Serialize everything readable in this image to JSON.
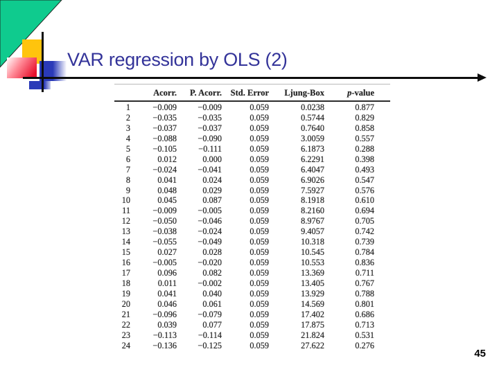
{
  "slide": {
    "title": "VAR regression by OLS (2)",
    "page_number": "45"
  },
  "colors": {
    "title_text": "#333399",
    "triangle_green": "#0fcb8e",
    "square_yellow": "#ffc40d",
    "square_red": "#e8112d",
    "square_blue": "#2a3ab8",
    "arrow_line": "#0d0d0d"
  },
  "chart_data": {
    "type": "table",
    "columns": [
      "",
      "Acorr.",
      "P. Acorr.",
      "Std. Error",
      "Ljung-Box",
      "p-value"
    ],
    "rows": [
      [
        "1",
        "−0.009",
        "−0.009",
        "0.059",
        "0.0238",
        "0.877"
      ],
      [
        "2",
        "−0.035",
        "−0.035",
        "0.059",
        "0.5744",
        "0.829"
      ],
      [
        "3",
        "−0.037",
        "−0.037",
        "0.059",
        "0.7640",
        "0.858"
      ],
      [
        "4",
        "−0.088",
        "−0.090",
        "0.059",
        "3.0059",
        "0.557"
      ],
      [
        "5",
        "−0.105",
        "−0.111",
        "0.059",
        "6.1873",
        "0.288"
      ],
      [
        "6",
        "0.012",
        "0.000",
        "0.059",
        "6.2291",
        "0.398"
      ],
      [
        "7",
        "−0.024",
        "−0.041",
        "0.059",
        "6.4047",
        "0.493"
      ],
      [
        "8",
        "0.041",
        "0.024",
        "0.059",
        "6.9026",
        "0.547"
      ],
      [
        "9",
        "0.048",
        "0.029",
        "0.059",
        "7.5927",
        "0.576"
      ],
      [
        "10",
        "0.045",
        "0.087",
        "0.059",
        "8.1918",
        "0.610"
      ],
      [
        "11",
        "−0.009",
        "−0.005",
        "0.059",
        "8.2160",
        "0.694"
      ],
      [
        "12",
        "−0.050",
        "−0.046",
        "0.059",
        "8.9767",
        "0.705"
      ],
      [
        "13",
        "−0.038",
        "−0.024",
        "0.059",
        "9.4057",
        "0.742"
      ],
      [
        "14",
        "−0.055",
        "−0.049",
        "0.059",
        "10.318",
        "0.739"
      ],
      [
        "15",
        "0.027",
        "0.028",
        "0.059",
        "10.545",
        "0.784"
      ],
      [
        "16",
        "−0.005",
        "−0.020",
        "0.059",
        "10.553",
        "0.836"
      ],
      [
        "17",
        "0.096",
        "0.082",
        "0.059",
        "13.369",
        "0.711"
      ],
      [
        "18",
        "0.011",
        "−0.002",
        "0.059",
        "13.405",
        "0.767"
      ],
      [
        "19",
        "0.041",
        "0.040",
        "0.059",
        "13.929",
        "0.788"
      ],
      [
        "20",
        "0.046",
        "0.061",
        "0.059",
        "14.569",
        "0.801"
      ],
      [
        "21",
        "−0.096",
        "−0.079",
        "0.059",
        "17.402",
        "0.686"
      ],
      [
        "22",
        "0.039",
        "0.077",
        "0.059",
        "17.875",
        "0.713"
      ],
      [
        "23",
        "−0.113",
        "−0.114",
        "0.059",
        "21.824",
        "0.531"
      ],
      [
        "24",
        "−0.136",
        "−0.125",
        "0.059",
        "27.622",
        "0.276"
      ]
    ]
  }
}
